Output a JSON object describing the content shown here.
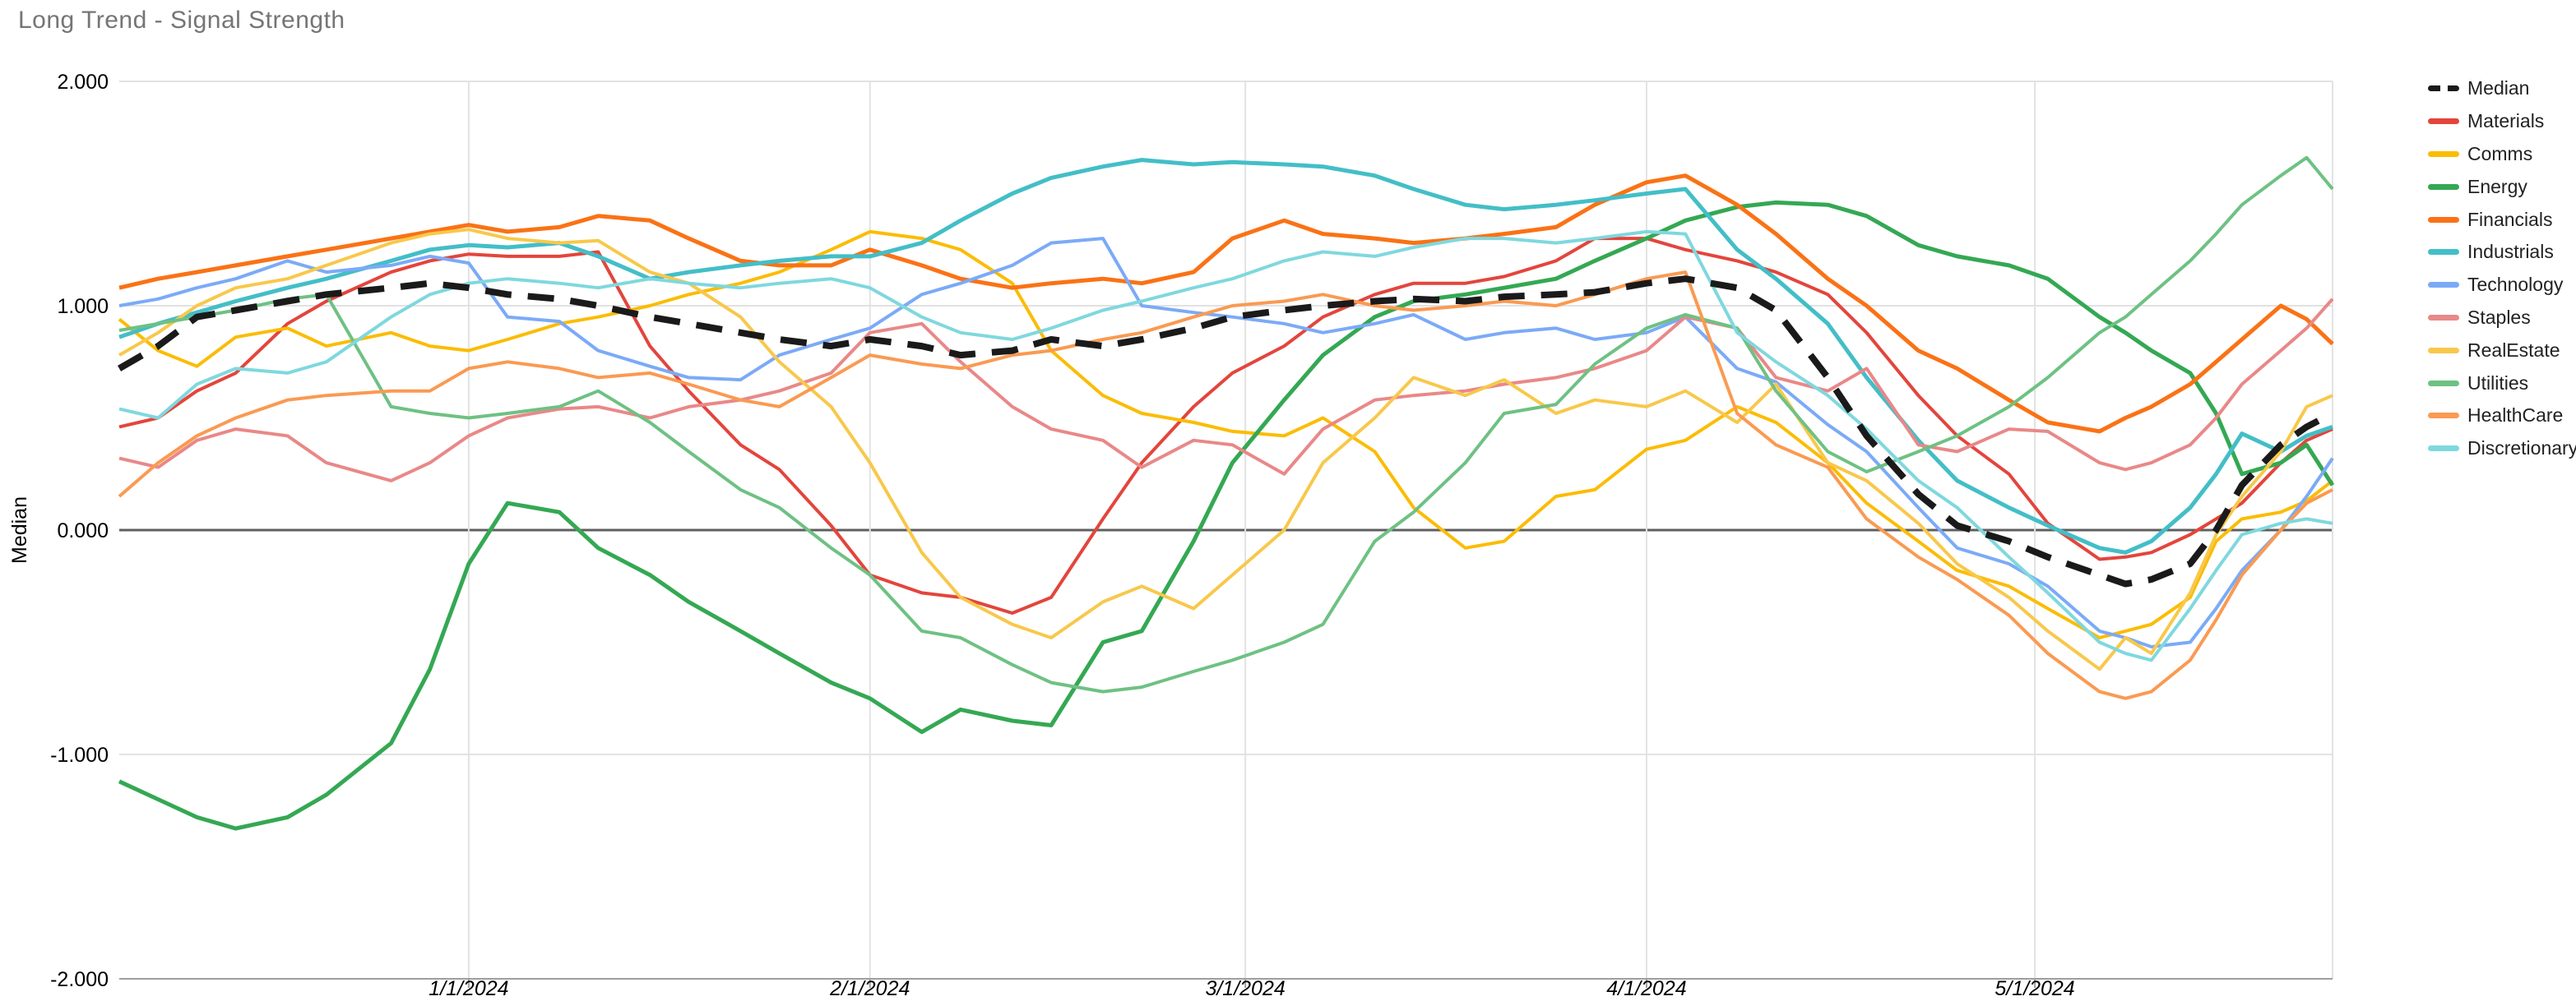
{
  "title": "Long Trend - Signal Strength",
  "y_axis": {
    "title": "Median",
    "tick_labels": [
      "2.000",
      "1.000",
      "0.000",
      "-1.000",
      "-2.000"
    ],
    "tick_values": [
      2,
      1,
      0,
      -1,
      -2
    ],
    "min": -2,
    "max": 2
  },
  "x_axis": {
    "tick_labels": [
      "1/1/2024",
      "2/1/2024",
      "3/1/2024",
      "4/1/2024",
      "5/1/2024"
    ],
    "tick_day_offsets": [
      27,
      58,
      87,
      118,
      148
    ],
    "total_days": 171
  },
  "style_colors": {
    "title_text": "#757575",
    "axis_text": "#000000",
    "legend_text": "#222222",
    "gridline": "#e2e2e2",
    "zero_line": "#5f5f5f",
    "baseline": "#9e9e9e",
    "background": "#ffffff"
  },
  "chart_data": {
    "type": "line",
    "grid": true,
    "legend_position": "right",
    "ylim": [
      -2,
      2
    ],
    "x_dates": [
      "12/5",
      "12/8",
      "12/11",
      "12/14",
      "12/18",
      "12/21",
      "12/26",
      "12/29",
      "1/1",
      "1/4",
      "1/8",
      "1/11",
      "1/15",
      "1/18",
      "1/22",
      "1/25",
      "1/29",
      "2/1",
      "2/5",
      "2/8",
      "2/12",
      "2/15",
      "2/19",
      "2/22",
      "2/26",
      "2/29",
      "3/4",
      "3/7",
      "3/11",
      "3/14",
      "3/18",
      "3/21",
      "3/25",
      "3/28",
      "4/1",
      "4/4",
      "4/8",
      "4/11",
      "4/15",
      "4/18",
      "4/22",
      "4/25",
      "4/29",
      "5/2",
      "5/6",
      "5/8",
      "5/10",
      "5/13",
      "5/15",
      "5/17",
      "5/20",
      "5/22",
      "5/24"
    ],
    "x_day_offsets": [
      0,
      3,
      6,
      9,
      13,
      16,
      21,
      24,
      27,
      30,
      34,
      37,
      41,
      44,
      48,
      51,
      55,
      58,
      62,
      65,
      69,
      72,
      76,
      79,
      83,
      86,
      90,
      93,
      97,
      100,
      104,
      107,
      111,
      114,
      118,
      121,
      125,
      128,
      132,
      135,
      139,
      142,
      146,
      149,
      153,
      155,
      157,
      160,
      162,
      164,
      167,
      169,
      171
    ],
    "series": [
      {
        "name": "Median",
        "color": "#1a1a1a",
        "dashed": true,
        "width": 8,
        "values": [
          0.72,
          0.82,
          0.95,
          0.98,
          1.02,
          1.05,
          1.08,
          1.1,
          1.08,
          1.05,
          1.03,
          1.0,
          0.95,
          0.92,
          0.88,
          0.85,
          0.82,
          0.85,
          0.82,
          0.78,
          0.8,
          0.85,
          0.82,
          0.85,
          0.9,
          0.95,
          0.98,
          1.0,
          1.02,
          1.03,
          1.02,
          1.04,
          1.05,
          1.06,
          1.1,
          1.12,
          1.08,
          0.98,
          0.68,
          0.42,
          0.16,
          0.02,
          -0.05,
          -0.12,
          -0.2,
          -0.24,
          -0.22,
          -0.15,
          0.0,
          0.2,
          0.38,
          0.46,
          0.52
        ]
      },
      {
        "name": "Materials",
        "color": "#e3453c",
        "dashed": false,
        "width": 4,
        "values": [
          0.46,
          0.5,
          0.62,
          0.7,
          0.92,
          1.02,
          1.15,
          1.2,
          1.23,
          1.22,
          1.22,
          1.24,
          0.82,
          0.62,
          0.38,
          0.27,
          0.02,
          -0.2,
          -0.28,
          -0.3,
          -0.37,
          -0.3,
          0.05,
          0.3,
          0.55,
          0.7,
          0.82,
          0.95,
          1.05,
          1.1,
          1.1,
          1.13,
          1.2,
          1.3,
          1.3,
          1.25,
          1.2,
          1.15,
          1.05,
          0.88,
          0.6,
          0.42,
          0.25,
          0.03,
          -0.13,
          -0.12,
          -0.1,
          -0.02,
          0.05,
          0.12,
          0.3,
          0.4,
          0.45
        ]
      },
      {
        "name": "Comms",
        "color": "#fbbc04",
        "dashed": false,
        "width": 4,
        "values": [
          0.94,
          0.8,
          0.73,
          0.86,
          0.9,
          0.82,
          0.88,
          0.82,
          0.8,
          0.85,
          0.92,
          0.95,
          1.0,
          1.05,
          1.1,
          1.15,
          1.25,
          1.33,
          1.3,
          1.25,
          1.1,
          0.8,
          0.6,
          0.52,
          0.48,
          0.44,
          0.42,
          0.5,
          0.35,
          0.1,
          -0.08,
          -0.05,
          0.15,
          0.18,
          0.36,
          0.4,
          0.55,
          0.48,
          0.3,
          0.12,
          -0.05,
          -0.18,
          -0.25,
          -0.35,
          -0.48,
          -0.45,
          -0.42,
          -0.3,
          -0.05,
          0.05,
          0.08,
          0.13,
          0.22
        ]
      },
      {
        "name": "Energy",
        "color": "#34a853",
        "dashed": false,
        "width": 5,
        "values": [
          -1.12,
          -1.2,
          -1.28,
          -1.33,
          -1.28,
          -1.18,
          -0.95,
          -0.62,
          -0.15,
          0.12,
          0.08,
          -0.08,
          -0.2,
          -0.32,
          -0.45,
          -0.55,
          -0.68,
          -0.75,
          -0.9,
          -0.8,
          -0.85,
          -0.87,
          -0.5,
          -0.45,
          -0.05,
          0.3,
          0.58,
          0.78,
          0.95,
          1.02,
          1.05,
          1.08,
          1.12,
          1.2,
          1.3,
          1.38,
          1.44,
          1.46,
          1.45,
          1.4,
          1.27,
          1.22,
          1.18,
          1.12,
          0.95,
          0.88,
          0.8,
          0.7,
          0.52,
          0.25,
          0.3,
          0.38,
          0.2
        ]
      },
      {
        "name": "Financials",
        "color": "#fa7215",
        "dashed": false,
        "width": 5,
        "values": [
          1.08,
          1.12,
          1.15,
          1.18,
          1.22,
          1.25,
          1.3,
          1.33,
          1.36,
          1.33,
          1.35,
          1.4,
          1.38,
          1.3,
          1.2,
          1.18,
          1.18,
          1.25,
          1.18,
          1.12,
          1.08,
          1.1,
          1.12,
          1.1,
          1.15,
          1.3,
          1.38,
          1.32,
          1.3,
          1.28,
          1.3,
          1.32,
          1.35,
          1.45,
          1.55,
          1.58,
          1.45,
          1.32,
          1.12,
          1.0,
          0.8,
          0.72,
          0.58,
          0.48,
          0.44,
          0.5,
          0.55,
          0.65,
          0.75,
          0.85,
          1.0,
          0.94,
          0.83
        ]
      },
      {
        "name": "Industrials",
        "color": "#43bec7",
        "dashed": false,
        "width": 5,
        "values": [
          0.86,
          0.92,
          0.97,
          1.02,
          1.08,
          1.12,
          1.2,
          1.25,
          1.27,
          1.26,
          1.28,
          1.22,
          1.12,
          1.15,
          1.18,
          1.2,
          1.22,
          1.22,
          1.28,
          1.38,
          1.5,
          1.57,
          1.62,
          1.65,
          1.63,
          1.64,
          1.63,
          1.62,
          1.58,
          1.52,
          1.45,
          1.43,
          1.45,
          1.47,
          1.5,
          1.52,
          1.25,
          1.12,
          0.92,
          0.68,
          0.4,
          0.22,
          0.1,
          0.02,
          -0.08,
          -0.1,
          -0.05,
          0.1,
          0.25,
          0.43,
          0.35,
          0.42,
          0.46
        ]
      },
      {
        "name": "Technology",
        "color": "#7baaf7",
        "dashed": false,
        "width": 4,
        "values": [
          1.0,
          1.03,
          1.08,
          1.12,
          1.2,
          1.15,
          1.18,
          1.22,
          1.19,
          0.95,
          0.93,
          0.8,
          0.73,
          0.68,
          0.67,
          0.78,
          0.85,
          0.9,
          1.05,
          1.1,
          1.18,
          1.28,
          1.3,
          1.0,
          0.97,
          0.95,
          0.92,
          0.88,
          0.92,
          0.96,
          0.85,
          0.88,
          0.9,
          0.85,
          0.88,
          0.95,
          0.72,
          0.66,
          0.47,
          0.35,
          0.1,
          -0.08,
          -0.15,
          -0.25,
          -0.45,
          -0.48,
          -0.52,
          -0.5,
          -0.35,
          -0.18,
          0.0,
          0.15,
          0.32
        ]
      },
      {
        "name": "Staples",
        "color": "#e98888",
        "dashed": false,
        "width": 4,
        "values": [
          0.32,
          0.28,
          0.4,
          0.45,
          0.42,
          0.3,
          0.22,
          0.3,
          0.42,
          0.5,
          0.54,
          0.55,
          0.5,
          0.55,
          0.58,
          0.62,
          0.7,
          0.88,
          0.92,
          0.75,
          0.55,
          0.45,
          0.4,
          0.28,
          0.4,
          0.38,
          0.25,
          0.45,
          0.58,
          0.6,
          0.62,
          0.65,
          0.68,
          0.72,
          0.8,
          0.95,
          0.9,
          0.68,
          0.62,
          0.72,
          0.38,
          0.35,
          0.45,
          0.44,
          0.3,
          0.27,
          0.3,
          0.38,
          0.5,
          0.65,
          0.8,
          0.9,
          1.03
        ]
      },
      {
        "name": "RealEstate",
        "color": "#f8c84b",
        "dashed": false,
        "width": 4,
        "values": [
          0.78,
          0.88,
          1.0,
          1.08,
          1.12,
          1.18,
          1.28,
          1.32,
          1.34,
          1.3,
          1.28,
          1.29,
          1.15,
          1.1,
          0.95,
          0.75,
          0.55,
          0.3,
          -0.1,
          -0.3,
          -0.42,
          -0.48,
          -0.32,
          -0.25,
          -0.35,
          -0.2,
          0.0,
          0.3,
          0.5,
          0.68,
          0.6,
          0.67,
          0.52,
          0.58,
          0.55,
          0.62,
          0.48,
          0.65,
          0.3,
          0.22,
          0.03,
          -0.15,
          -0.3,
          -0.45,
          -0.62,
          -0.48,
          -0.55,
          -0.28,
          -0.02,
          0.15,
          0.35,
          0.55,
          0.6
        ]
      },
      {
        "name": "Utilities",
        "color": "#6ec183",
        "dashed": false,
        "width": 4,
        "values": [
          0.89,
          0.92,
          0.95,
          0.98,
          1.03,
          1.05,
          0.55,
          0.52,
          0.5,
          0.52,
          0.55,
          0.62,
          0.48,
          0.35,
          0.18,
          0.1,
          -0.08,
          -0.2,
          -0.45,
          -0.48,
          -0.6,
          -0.68,
          -0.72,
          -0.7,
          -0.63,
          -0.58,
          -0.5,
          -0.42,
          -0.05,
          0.08,
          0.3,
          0.52,
          0.56,
          0.74,
          0.9,
          0.96,
          0.9,
          0.62,
          0.35,
          0.26,
          0.35,
          0.42,
          0.55,
          0.68,
          0.88,
          0.95,
          1.05,
          1.2,
          1.32,
          1.45,
          1.58,
          1.66,
          1.52
        ]
      },
      {
        "name": "HealthCare",
        "color": "#fa9a52",
        "dashed": false,
        "width": 4,
        "values": [
          0.15,
          0.3,
          0.42,
          0.5,
          0.58,
          0.6,
          0.62,
          0.62,
          0.72,
          0.75,
          0.72,
          0.68,
          0.7,
          0.65,
          0.58,
          0.55,
          0.68,
          0.78,
          0.74,
          0.72,
          0.78,
          0.8,
          0.85,
          0.88,
          0.95,
          1.0,
          1.02,
          1.05,
          1.0,
          0.98,
          1.0,
          1.02,
          1.0,
          1.05,
          1.12,
          1.15,
          0.52,
          0.38,
          0.28,
          0.05,
          -0.12,
          -0.22,
          -0.38,
          -0.55,
          -0.72,
          -0.75,
          -0.72,
          -0.58,
          -0.4,
          -0.2,
          0.0,
          0.12,
          0.18
        ]
      },
      {
        "name": "Discretionary",
        "color": "#7fd8de",
        "dashed": false,
        "width": 4,
        "values": [
          0.54,
          0.5,
          0.65,
          0.72,
          0.7,
          0.75,
          0.95,
          1.05,
          1.1,
          1.12,
          1.1,
          1.08,
          1.12,
          1.1,
          1.08,
          1.1,
          1.12,
          1.08,
          0.95,
          0.88,
          0.85,
          0.9,
          0.98,
          1.02,
          1.08,
          1.12,
          1.2,
          1.24,
          1.22,
          1.26,
          1.3,
          1.3,
          1.28,
          1.3,
          1.33,
          1.32,
          0.88,
          0.75,
          0.6,
          0.45,
          0.22,
          0.1,
          -0.12,
          -0.28,
          -0.5,
          -0.55,
          -0.58,
          -0.35,
          -0.18,
          -0.02,
          0.03,
          0.05,
          0.03
        ]
      }
    ]
  }
}
